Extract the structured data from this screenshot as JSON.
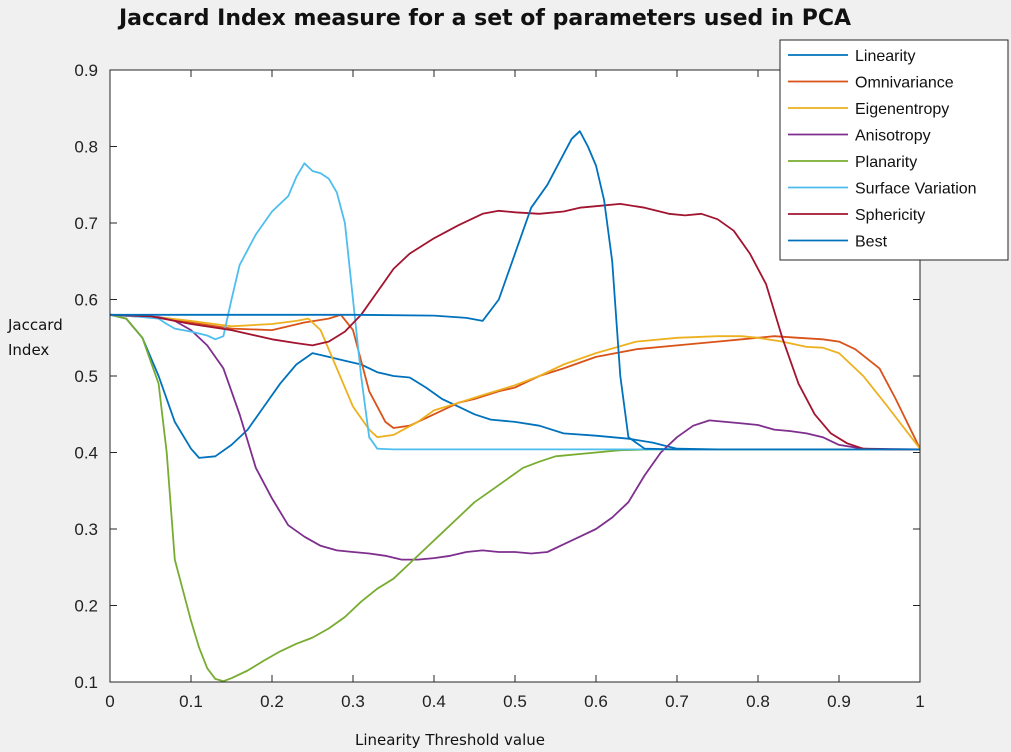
{
  "chart_data": {
    "type": "line",
    "title": "Jaccard Index measure for a set of parameters used in PCA",
    "xlabel": "Linearity Threshold value",
    "ylabel": [
      "Jaccard",
      "Index"
    ],
    "xlim": [
      0,
      1
    ],
    "ylim": [
      0.1,
      0.9
    ],
    "x_ticks": [
      "0",
      "0.1",
      "0.2",
      "0.3",
      "0.4",
      "0.5",
      "0.6",
      "0.7",
      "0.8",
      "0.9",
      "1"
    ],
    "y_ticks": [
      "0.1",
      "0.2",
      "0.3",
      "0.4",
      "0.5",
      "0.6",
      "0.7",
      "0.8",
      "0.9"
    ],
    "grid": false,
    "legend_position": "top-right",
    "series": [
      {
        "name": "Linearity",
        "color": "#0072bd",
        "points": [
          [
            0,
            0.58
          ],
          [
            0.02,
            0.575
          ],
          [
            0.04,
            0.55
          ],
          [
            0.06,
            0.5
          ],
          [
            0.08,
            0.44
          ],
          [
            0.1,
            0.405
          ],
          [
            0.11,
            0.393
          ],
          [
            0.13,
            0.395
          ],
          [
            0.15,
            0.41
          ],
          [
            0.17,
            0.43
          ],
          [
            0.19,
            0.46
          ],
          [
            0.21,
            0.49
          ],
          [
            0.23,
            0.515
          ],
          [
            0.25,
            0.53
          ],
          [
            0.27,
            0.525
          ],
          [
            0.29,
            0.52
          ],
          [
            0.31,
            0.515
          ],
          [
            0.33,
            0.505
          ],
          [
            0.35,
            0.5
          ],
          [
            0.37,
            0.498
          ],
          [
            0.39,
            0.485
          ],
          [
            0.41,
            0.47
          ],
          [
            0.43,
            0.46
          ],
          [
            0.45,
            0.45
          ],
          [
            0.47,
            0.443
          ],
          [
            0.5,
            0.44
          ],
          [
            0.53,
            0.435
          ],
          [
            0.56,
            0.425
          ],
          [
            0.6,
            0.422
          ],
          [
            0.64,
            0.418
          ],
          [
            0.67,
            0.413
          ],
          [
            0.7,
            0.405
          ],
          [
            0.75,
            0.404
          ],
          [
            0.8,
            0.404
          ],
          [
            0.9,
            0.404
          ],
          [
            1,
            0.404
          ]
        ]
      },
      {
        "name": "Omnivariance",
        "color": "#d95319",
        "points": [
          [
            0,
            0.58
          ],
          [
            0.05,
            0.578
          ],
          [
            0.1,
            0.57
          ],
          [
            0.15,
            0.562
          ],
          [
            0.2,
            0.56
          ],
          [
            0.24,
            0.57
          ],
          [
            0.27,
            0.575
          ],
          [
            0.285,
            0.58
          ],
          [
            0.3,
            0.56
          ],
          [
            0.32,
            0.48
          ],
          [
            0.34,
            0.44
          ],
          [
            0.35,
            0.432
          ],
          [
            0.37,
            0.435
          ],
          [
            0.4,
            0.45
          ],
          [
            0.43,
            0.465
          ],
          [
            0.45,
            0.47
          ],
          [
            0.48,
            0.48
          ],
          [
            0.5,
            0.485
          ],
          [
            0.53,
            0.5
          ],
          [
            0.56,
            0.51
          ],
          [
            0.6,
            0.525
          ],
          [
            0.65,
            0.535
          ],
          [
            0.7,
            0.54
          ],
          [
            0.75,
            0.545
          ],
          [
            0.78,
            0.548
          ],
          [
            0.82,
            0.552
          ],
          [
            0.85,
            0.55
          ],
          [
            0.88,
            0.548
          ],
          [
            0.9,
            0.545
          ],
          [
            0.92,
            0.535
          ],
          [
            0.95,
            0.51
          ],
          [
            0.97,
            0.47
          ],
          [
            1,
            0.405
          ]
        ]
      },
      {
        "name": "Eigenentropy",
        "color": "#edb120",
        "points": [
          [
            0,
            0.58
          ],
          [
            0.05,
            0.578
          ],
          [
            0.1,
            0.572
          ],
          [
            0.15,
            0.565
          ],
          [
            0.2,
            0.568
          ],
          [
            0.23,
            0.572
          ],
          [
            0.245,
            0.575
          ],
          [
            0.26,
            0.56
          ],
          [
            0.28,
            0.51
          ],
          [
            0.3,
            0.46
          ],
          [
            0.32,
            0.43
          ],
          [
            0.33,
            0.42
          ],
          [
            0.35,
            0.423
          ],
          [
            0.38,
            0.44
          ],
          [
            0.4,
            0.455
          ],
          [
            0.43,
            0.465
          ],
          [
            0.46,
            0.475
          ],
          [
            0.5,
            0.488
          ],
          [
            0.53,
            0.5
          ],
          [
            0.56,
            0.515
          ],
          [
            0.6,
            0.53
          ],
          [
            0.65,
            0.545
          ],
          [
            0.7,
            0.55
          ],
          [
            0.75,
            0.552
          ],
          [
            0.78,
            0.552
          ],
          [
            0.8,
            0.55
          ],
          [
            0.83,
            0.545
          ],
          [
            0.86,
            0.538
          ],
          [
            0.88,
            0.537
          ],
          [
            0.9,
            0.53
          ],
          [
            0.93,
            0.5
          ],
          [
            0.96,
            0.46
          ],
          [
            1,
            0.405
          ]
        ]
      },
      {
        "name": "Anisotropy",
        "color": "#7e2f8e",
        "points": [
          [
            0,
            0.58
          ],
          [
            0.03,
            0.578
          ],
          [
            0.06,
            0.577
          ],
          [
            0.08,
            0.572
          ],
          [
            0.1,
            0.56
          ],
          [
            0.12,
            0.54
          ],
          [
            0.14,
            0.51
          ],
          [
            0.16,
            0.45
          ],
          [
            0.18,
            0.38
          ],
          [
            0.2,
            0.34
          ],
          [
            0.22,
            0.305
          ],
          [
            0.24,
            0.29
          ],
          [
            0.26,
            0.278
          ],
          [
            0.28,
            0.272
          ],
          [
            0.3,
            0.27
          ],
          [
            0.32,
            0.268
          ],
          [
            0.34,
            0.265
          ],
          [
            0.36,
            0.26
          ],
          [
            0.38,
            0.26
          ],
          [
            0.4,
            0.262
          ],
          [
            0.42,
            0.265
          ],
          [
            0.44,
            0.27
          ],
          [
            0.46,
            0.272
          ],
          [
            0.48,
            0.27
          ],
          [
            0.5,
            0.27
          ],
          [
            0.52,
            0.268
          ],
          [
            0.54,
            0.27
          ],
          [
            0.56,
            0.28
          ],
          [
            0.58,
            0.29
          ],
          [
            0.6,
            0.3
          ],
          [
            0.62,
            0.315
          ],
          [
            0.64,
            0.335
          ],
          [
            0.66,
            0.37
          ],
          [
            0.68,
            0.4
          ],
          [
            0.7,
            0.42
          ],
          [
            0.72,
            0.435
          ],
          [
            0.74,
            0.442
          ],
          [
            0.76,
            0.44
          ],
          [
            0.78,
            0.438
          ],
          [
            0.8,
            0.436
          ],
          [
            0.82,
            0.43
          ],
          [
            0.84,
            0.428
          ],
          [
            0.86,
            0.425
          ],
          [
            0.88,
            0.42
          ],
          [
            0.9,
            0.41
          ],
          [
            0.93,
            0.405
          ],
          [
            1,
            0.404
          ]
        ]
      },
      {
        "name": "Planarity",
        "color": "#77ac30",
        "points": [
          [
            0,
            0.58
          ],
          [
            0.02,
            0.575
          ],
          [
            0.04,
            0.55
          ],
          [
            0.06,
            0.49
          ],
          [
            0.07,
            0.4
          ],
          [
            0.08,
            0.26
          ],
          [
            0.09,
            0.22
          ],
          [
            0.1,
            0.18
          ],
          [
            0.11,
            0.145
          ],
          [
            0.12,
            0.118
          ],
          [
            0.13,
            0.104
          ],
          [
            0.14,
            0.101
          ],
          [
            0.15,
            0.105
          ],
          [
            0.17,
            0.115
          ],
          [
            0.19,
            0.128
          ],
          [
            0.21,
            0.14
          ],
          [
            0.23,
            0.15
          ],
          [
            0.25,
            0.158
          ],
          [
            0.27,
            0.17
          ],
          [
            0.29,
            0.185
          ],
          [
            0.31,
            0.205
          ],
          [
            0.33,
            0.222
          ],
          [
            0.35,
            0.235
          ],
          [
            0.37,
            0.255
          ],
          [
            0.39,
            0.275
          ],
          [
            0.41,
            0.295
          ],
          [
            0.43,
            0.315
          ],
          [
            0.45,
            0.335
          ],
          [
            0.47,
            0.35
          ],
          [
            0.49,
            0.365
          ],
          [
            0.51,
            0.38
          ],
          [
            0.53,
            0.388
          ],
          [
            0.55,
            0.395
          ],
          [
            0.58,
            0.398
          ],
          [
            0.6,
            0.4
          ],
          [
            0.63,
            0.403
          ],
          [
            0.67,
            0.404
          ],
          [
            0.7,
            0.404
          ],
          [
            0.8,
            0.404
          ],
          [
            1,
            0.404
          ]
        ]
      },
      {
        "name": "Surface Variation",
        "color": "#4dbeee",
        "points": [
          [
            0,
            0.58
          ],
          [
            0.03,
            0.578
          ],
          [
            0.06,
            0.575
          ],
          [
            0.07,
            0.568
          ],
          [
            0.08,
            0.562
          ],
          [
            0.1,
            0.558
          ],
          [
            0.12,
            0.553
          ],
          [
            0.13,
            0.548
          ],
          [
            0.14,
            0.552
          ],
          [
            0.15,
            0.6
          ],
          [
            0.16,
            0.645
          ],
          [
            0.18,
            0.685
          ],
          [
            0.2,
            0.715
          ],
          [
            0.22,
            0.735
          ],
          [
            0.23,
            0.76
          ],
          [
            0.24,
            0.778
          ],
          [
            0.25,
            0.768
          ],
          [
            0.26,
            0.765
          ],
          [
            0.27,
            0.758
          ],
          [
            0.28,
            0.74
          ],
          [
            0.29,
            0.7
          ],
          [
            0.3,
            0.6
          ],
          [
            0.31,
            0.5
          ],
          [
            0.32,
            0.42
          ],
          [
            0.33,
            0.405
          ],
          [
            0.35,
            0.404
          ],
          [
            0.5,
            0.404
          ],
          [
            1,
            0.404
          ]
        ]
      },
      {
        "name": "Sphericity",
        "color": "#a2142f",
        "points": [
          [
            0,
            0.58
          ],
          [
            0.05,
            0.578
          ],
          [
            0.1,
            0.568
          ],
          [
            0.15,
            0.56
          ],
          [
            0.2,
            0.548
          ],
          [
            0.23,
            0.543
          ],
          [
            0.25,
            0.54
          ],
          [
            0.27,
            0.545
          ],
          [
            0.29,
            0.558
          ],
          [
            0.31,
            0.58
          ],
          [
            0.33,
            0.61
          ],
          [
            0.35,
            0.64
          ],
          [
            0.37,
            0.66
          ],
          [
            0.4,
            0.68
          ],
          [
            0.43,
            0.697
          ],
          [
            0.46,
            0.712
          ],
          [
            0.48,
            0.716
          ],
          [
            0.5,
            0.714
          ],
          [
            0.53,
            0.712
          ],
          [
            0.56,
            0.715
          ],
          [
            0.58,
            0.72
          ],
          [
            0.6,
            0.722
          ],
          [
            0.63,
            0.725
          ],
          [
            0.66,
            0.72
          ],
          [
            0.69,
            0.712
          ],
          [
            0.71,
            0.71
          ],
          [
            0.73,
            0.712
          ],
          [
            0.75,
            0.705
          ],
          [
            0.77,
            0.69
          ],
          [
            0.79,
            0.66
          ],
          [
            0.81,
            0.62
          ],
          [
            0.83,
            0.55
          ],
          [
            0.85,
            0.49
          ],
          [
            0.87,
            0.45
          ],
          [
            0.89,
            0.425
          ],
          [
            0.91,
            0.412
          ],
          [
            0.93,
            0.405
          ],
          [
            0.96,
            0.404
          ],
          [
            1,
            0.404
          ]
        ]
      },
      {
        "name": "Best",
        "color": "#0072bd",
        "points": [
          [
            0,
            0.58
          ],
          [
            0.1,
            0.58
          ],
          [
            0.2,
            0.58
          ],
          [
            0.3,
            0.58
          ],
          [
            0.4,
            0.579
          ],
          [
            0.44,
            0.576
          ],
          [
            0.46,
            0.572
          ],
          [
            0.48,
            0.6
          ],
          [
            0.5,
            0.66
          ],
          [
            0.52,
            0.72
          ],
          [
            0.54,
            0.75
          ],
          [
            0.56,
            0.79
          ],
          [
            0.57,
            0.81
          ],
          [
            0.58,
            0.82
          ],
          [
            0.59,
            0.8
          ],
          [
            0.6,
            0.775
          ],
          [
            0.61,
            0.73
          ],
          [
            0.62,
            0.65
          ],
          [
            0.63,
            0.5
          ],
          [
            0.64,
            0.42
          ],
          [
            0.66,
            0.405
          ],
          [
            0.7,
            0.404
          ],
          [
            0.8,
            0.404
          ],
          [
            1,
            0.404
          ]
        ]
      }
    ]
  }
}
